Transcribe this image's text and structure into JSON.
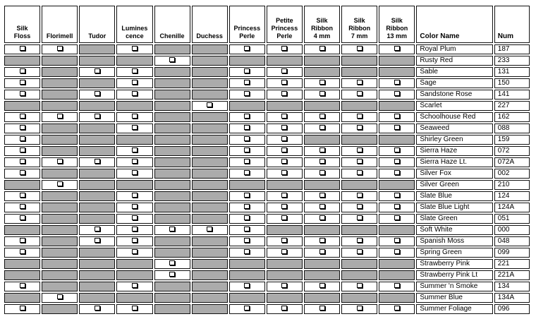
{
  "columns": [
    "Silk\nFloss",
    "Florimell",
    "Tudor",
    "Lumines\ncence",
    "Chenille",
    "Duchess",
    "Princess\nPerle",
    "Petite\nPrincess\nPerle",
    "Silk\nRibbon\n4 mm",
    "Silk\nRibbon\n7 mm",
    "Silk\nRibbon\n13 mm",
    "Color Name",
    "Num"
  ],
  "rows": [
    {
      "name": "Royal Plum",
      "num": "187",
      "avail": [
        1,
        1,
        0,
        1,
        0,
        0,
        1,
        1,
        1,
        1,
        1
      ]
    },
    {
      "name": "Rusty Red",
      "num": "233",
      "avail": [
        0,
        0,
        0,
        0,
        1,
        0,
        0,
        0,
        0,
        0,
        0
      ]
    },
    {
      "name": "Sable",
      "num": "131",
      "avail": [
        1,
        0,
        1,
        1,
        0,
        0,
        1,
        1,
        0,
        0,
        0
      ]
    },
    {
      "name": "Sage",
      "num": "150",
      "avail": [
        1,
        0,
        0,
        1,
        0,
        0,
        1,
        1,
        1,
        1,
        1
      ]
    },
    {
      "name": "Sandstone Rose",
      "num": "141",
      "avail": [
        1,
        0,
        1,
        1,
        0,
        0,
        1,
        1,
        1,
        1,
        1
      ]
    },
    {
      "name": "Scarlet",
      "num": "227",
      "avail": [
        0,
        0,
        0,
        0,
        0,
        1,
        0,
        0,
        0,
        0,
        0
      ]
    },
    {
      "name": "Schoolhouse Red",
      "num": "162",
      "avail": [
        1,
        1,
        1,
        1,
        0,
        0,
        1,
        1,
        1,
        1,
        1
      ]
    },
    {
      "name": "Seaweed",
      "num": "088",
      "avail": [
        1,
        0,
        0,
        1,
        0,
        0,
        1,
        1,
        1,
        1,
        1
      ]
    },
    {
      "name": "Shirley Green",
      "num": "159",
      "avail": [
        1,
        0,
        0,
        0,
        0,
        0,
        1,
        1,
        0,
        0,
        0
      ]
    },
    {
      "name": "Sierra Haze",
      "num": "072",
      "avail": [
        1,
        0,
        0,
        1,
        0,
        0,
        1,
        1,
        1,
        1,
        1
      ]
    },
    {
      "name": "Sierra Haze Lt.",
      "num": "072A",
      "avail": [
        1,
        1,
        1,
        1,
        0,
        0,
        1,
        1,
        1,
        1,
        1
      ]
    },
    {
      "name": "Silver Fox",
      "num": "002",
      "avail": [
        1,
        0,
        0,
        1,
        0,
        0,
        1,
        1,
        1,
        1,
        1
      ]
    },
    {
      "name": "Silver Green",
      "num": "210",
      "avail": [
        0,
        1,
        0,
        0,
        0,
        0,
        0,
        0,
        0,
        0,
        0
      ]
    },
    {
      "name": "Slate Blue",
      "num": "124",
      "avail": [
        1,
        0,
        0,
        1,
        0,
        0,
        1,
        1,
        1,
        1,
        1
      ]
    },
    {
      "name": "Slate Blue Light",
      "num": "124A",
      "avail": [
        1,
        0,
        0,
        1,
        0,
        0,
        1,
        1,
        1,
        1,
        1
      ]
    },
    {
      "name": "Slate Green",
      "num": "051",
      "avail": [
        1,
        0,
        0,
        1,
        0,
        0,
        1,
        1,
        1,
        1,
        1
      ]
    },
    {
      "name": "Soft White",
      "num": "000",
      "avail": [
        0,
        0,
        1,
        1,
        1,
        1,
        1,
        0,
        0,
        0,
        0
      ]
    },
    {
      "name": "Spanish Moss",
      "num": "048",
      "avail": [
        1,
        0,
        1,
        1,
        0,
        0,
        1,
        1,
        1,
        1,
        1
      ]
    },
    {
      "name": "Spring Green",
      "num": "099",
      "avail": [
        1,
        0,
        0,
        1,
        0,
        0,
        1,
        1,
        1,
        1,
        1
      ]
    },
    {
      "name": "Strawberry Pink",
      "num": "221",
      "avail": [
        0,
        0,
        0,
        0,
        1,
        0,
        0,
        0,
        0,
        0,
        0
      ]
    },
    {
      "name": "Strawberry Pink Lt",
      "num": "221A",
      "avail": [
        0,
        0,
        0,
        0,
        1,
        0,
        0,
        0,
        0,
        0,
        0
      ]
    },
    {
      "name": "Summer 'n Smoke",
      "num": "134",
      "avail": [
        1,
        0,
        0,
        1,
        0,
        0,
        1,
        1,
        1,
        1,
        1
      ]
    },
    {
      "name": "Summer Blue",
      "num": "134A",
      "avail": [
        0,
        1,
        0,
        0,
        0,
        0,
        0,
        0,
        0,
        0,
        0
      ]
    },
    {
      "name": "Summer Foliage",
      "num": "096",
      "avail": [
        1,
        0,
        1,
        1,
        0,
        0,
        1,
        1,
        1,
        1,
        1
      ]
    }
  ],
  "colors": {
    "unavailable_fill": "#ababab",
    "border": "#111111"
  },
  "icons": {
    "available": "checkbox-icon"
  }
}
